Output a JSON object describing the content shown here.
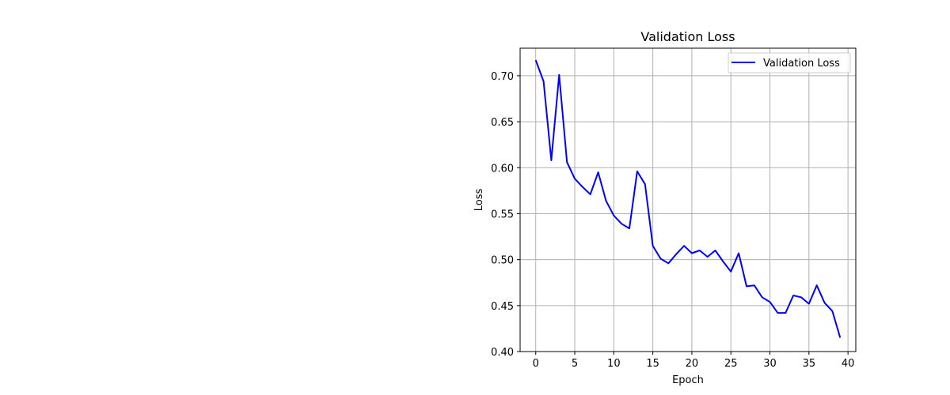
{
  "chart_data": {
    "type": "line",
    "title": "Validation Loss",
    "xlabel": "Epoch",
    "ylabel": "Loss",
    "xlim": [
      -2,
      41
    ],
    "ylim": [
      0.4,
      0.73
    ],
    "xticks": [
      0,
      5,
      10,
      15,
      20,
      25,
      30,
      35,
      40
    ],
    "yticks": [
      0.4,
      0.45,
      0.5,
      0.55,
      0.6,
      0.65,
      0.7
    ],
    "grid": true,
    "legend_position": "top-right",
    "series": [
      {
        "name": "Validation Loss",
        "color": "#0000ff",
        "x": [
          0,
          1,
          2,
          3,
          4,
          5,
          6,
          7,
          8,
          9,
          10,
          11,
          12,
          13,
          14,
          15,
          16,
          17,
          18,
          19,
          20,
          21,
          22,
          23,
          24,
          25,
          26,
          27,
          28,
          29,
          30,
          31,
          32,
          33,
          34,
          35,
          36,
          37,
          38,
          39
        ],
        "y": [
          0.717,
          0.694,
          0.608,
          0.701,
          0.606,
          0.588,
          0.579,
          0.571,
          0.595,
          0.564,
          0.548,
          0.539,
          0.534,
          0.596,
          0.582,
          0.515,
          0.501,
          0.496,
          0.506,
          0.515,
          0.507,
          0.51,
          0.503,
          0.51,
          0.498,
          0.487,
          0.507,
          0.471,
          0.472,
          0.459,
          0.454,
          0.442,
          0.442,
          0.461,
          0.459,
          0.452,
          0.472,
          0.453,
          0.444,
          0.415
        ]
      }
    ]
  }
}
